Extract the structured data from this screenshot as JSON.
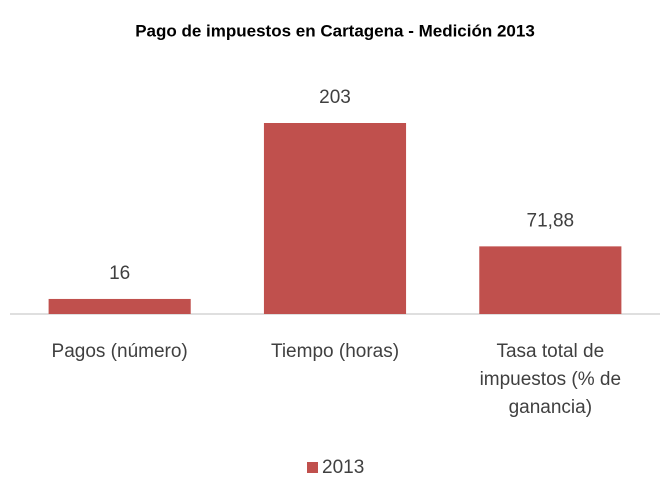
{
  "chart_data": {
    "type": "bar",
    "title": "Pago de impuestos en Cartagena - Medición 2013",
    "categories": [
      "Pagos (número)",
      "Tiempo (horas)",
      "Tasa total de impuestos (% de ganancia)"
    ],
    "series": [
      {
        "name": "2013",
        "color": "#c0504d",
        "values": [
          16,
          203,
          71.88
        ],
        "value_labels": [
          "16",
          "203",
          "71,88"
        ]
      }
    ],
    "legend": "bottom"
  }
}
